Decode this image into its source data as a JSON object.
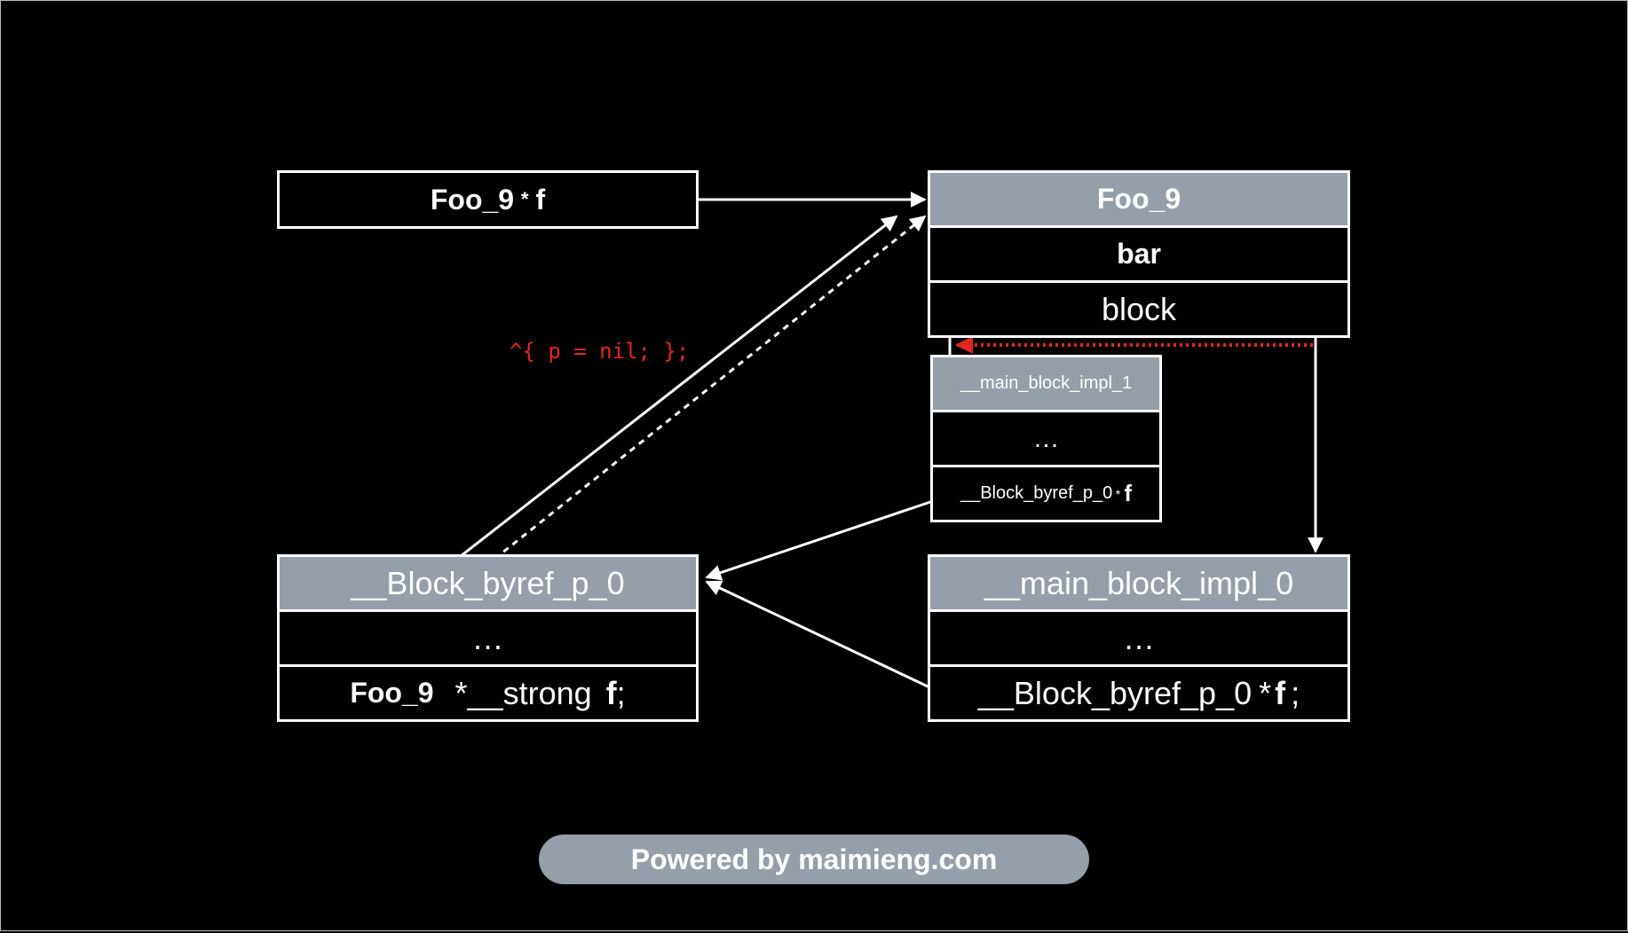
{
  "colors": {
    "background": "#000000",
    "header_fill": "#959ea9",
    "box_stroke": "#ffffff",
    "arrow": "#ffffff",
    "retain_arrow": "#e0261f",
    "code_text": "#e0261f"
  },
  "pointer_box": {
    "type": "Foo_9",
    "star": "*",
    "name": "f"
  },
  "foo9_object": {
    "title": "Foo_9",
    "field_bar": "bar",
    "field_block": "block"
  },
  "main_block_impl_1": {
    "title": "__main_block_impl_1",
    "ellipsis": "…",
    "field_prefix": "__Block_byref_p_0",
    "field_star": "*",
    "field_name": "f"
  },
  "block_byref": {
    "title": "__Block_byref_p_0",
    "ellipsis": "…",
    "field_type": "Foo_9",
    "field_qualifier": "*__strong",
    "field_name": "f",
    "field_semicolon": ";"
  },
  "main_block_impl_0": {
    "title": "__main_block_impl_0",
    "ellipsis": "…",
    "field_prefix": "__Block_byref_p_0",
    "field_star": "*",
    "field_name": "f",
    "field_semicolon": ";"
  },
  "block_code_label": "^{ p = nil; };",
  "footer": {
    "text": "Powered by maimieng.com"
  }
}
